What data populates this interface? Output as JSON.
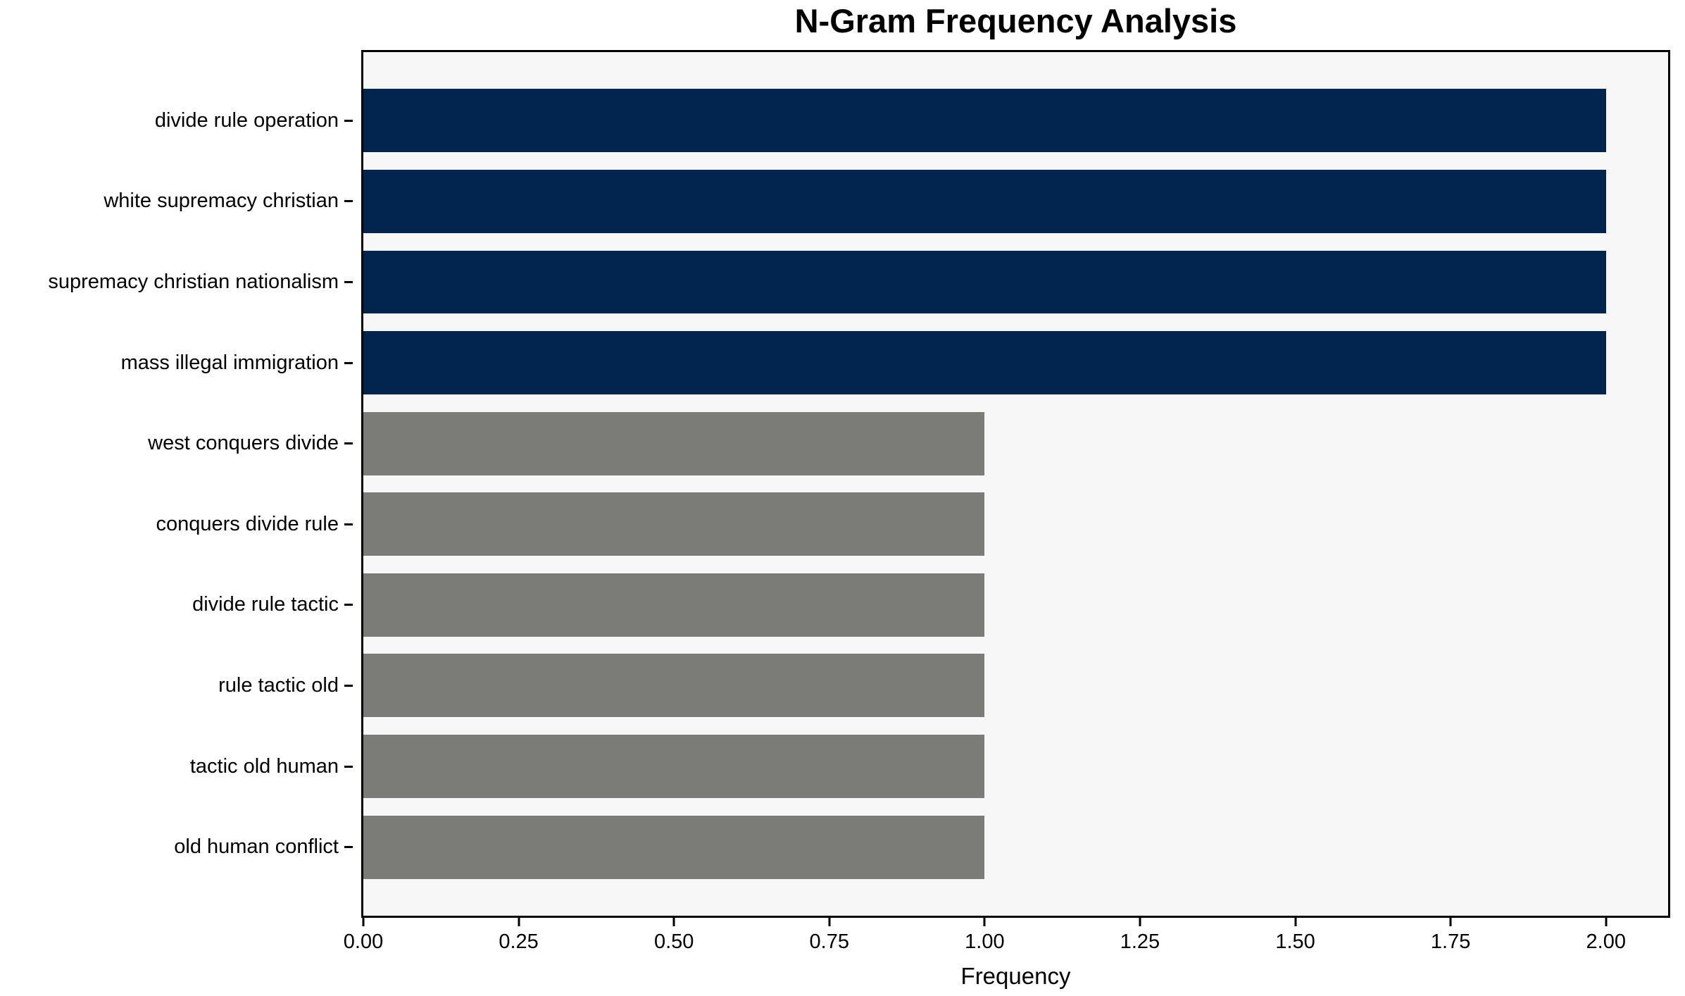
{
  "chart_data": {
    "type": "bar",
    "orientation": "horizontal",
    "title": "N-Gram Frequency Analysis",
    "xlabel": "Frequency",
    "ylabel": "",
    "categories": [
      "divide rule operation",
      "white supremacy christian",
      "supremacy christian nationalism",
      "mass illegal immigration",
      "west conquers divide",
      "conquers divide rule",
      "divide rule tactic",
      "rule tactic old",
      "tactic old human",
      "old human conflict"
    ],
    "values": [
      2,
      2,
      2,
      2,
      1,
      1,
      1,
      1,
      1,
      1
    ],
    "bar_colors": [
      "#022550",
      "#022550",
      "#022550",
      "#022550",
      "#7b7b78",
      "#7b7b78",
      "#7b7b78",
      "#7b7b78",
      "#7b7b78",
      "#7b7b78"
    ],
    "xlim": [
      0,
      2.1
    ],
    "xticks": [
      {
        "value": 0.0,
        "label": "0.00"
      },
      {
        "value": 0.25,
        "label": "0.25"
      },
      {
        "value": 0.5,
        "label": "0.50"
      },
      {
        "value": 0.75,
        "label": "0.75"
      },
      {
        "value": 1.0,
        "label": "1.00"
      },
      {
        "value": 1.25,
        "label": "1.25"
      },
      {
        "value": 1.5,
        "label": "1.50"
      },
      {
        "value": 1.75,
        "label": "1.75"
      },
      {
        "value": 2.0,
        "label": "2.00"
      }
    ],
    "grid": false,
    "legend": null,
    "colors": {
      "bar_frequent": "#022550",
      "bar_single": "#7b7b78",
      "plot_background": "#f7f7f7",
      "figure_background": "#ffffff",
      "axis": "#000000",
      "text": "#000000"
    }
  }
}
